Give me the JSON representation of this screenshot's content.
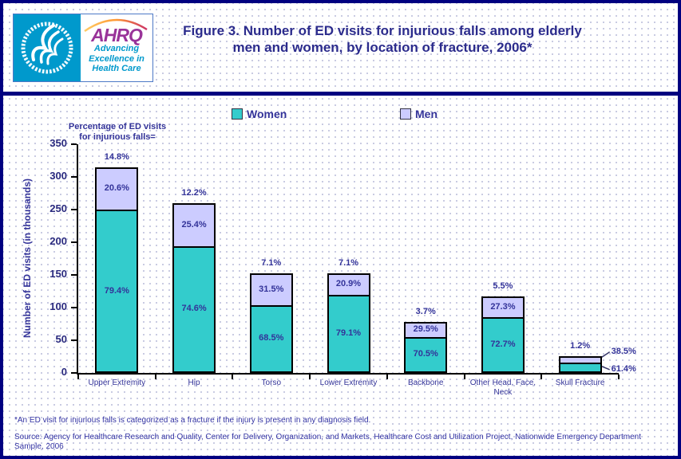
{
  "page": {
    "title_line1": "Figure 3. Number of ED visits for injurious falls among elderly",
    "title_line2": "men and women, by location of fracture, 2006*",
    "footnote": "*An ED visit for injurious falls is categorized as a fracture if the injury is present in any diagnosis field.",
    "source": "Source: Agency for Healthcare Research and Quality, Center for Delivery, Organization, and Markets, Healthcare Cost and Utilization Project, Nationwide Emergency Department Sample, 2006"
  },
  "logo": {
    "acronym": "AHRQ",
    "tagline": "Advancing Excellence in Health Care"
  },
  "annotation": {
    "line1": "Percentage of ED visits",
    "line2": "for injurious falls="
  },
  "colors": {
    "women": "#33CCCC",
    "men": "#CCCCFF",
    "frame_navy": "#000080",
    "title_navy": "#2B2B8C",
    "label_navy": "#333399",
    "axis_black": "#000000",
    "hhs_blue": "#0099CC",
    "ahrq_purple": "#993399",
    "dot": "#C9CBE2"
  },
  "chart_data": {
    "type": "bar",
    "stacked": true,
    "title": "Number of ED visits for injurious falls among elderly men and women, by location of fracture, 2006",
    "ylabel": "Number of ED visits (in thousands)",
    "unit": "thousands",
    "ylim": [
      0,
      350
    ],
    "ytick_step": 50,
    "grid": false,
    "legend_position": "top",
    "categories": [
      "Upper Extremity",
      "Hip",
      "Torso",
      "Lower Extremity",
      "Backbone",
      "Other Head, Face, Neck",
      "Skull Fracture"
    ],
    "series": [
      {
        "name": "Women",
        "color": "#33CCCC",
        "values": [
          250,
          194,
          104,
          120,
          55,
          85,
          16
        ],
        "pct_labels": [
          "79.4%",
          "74.6%",
          "68.5%",
          "79.1%",
          "70.5%",
          "72.7%",
          "61.4%"
        ]
      },
      {
        "name": "Men",
        "color": "#CCCCFF",
        "values": [
          65,
          66,
          48,
          32,
          23,
          32,
          10
        ],
        "pct_labels": [
          "20.6%",
          "25.4%",
          "31.5%",
          "20.9%",
          "29.5%",
          "27.3%",
          "38.5%"
        ]
      }
    ],
    "totals": [
      315,
      260,
      152,
      152,
      78,
      117,
      26
    ],
    "total_pct_labels": [
      "14.8%",
      "12.2%",
      "7.1%",
      "7.1%",
      "3.7%",
      "5.5%",
      "1.2%"
    ],
    "callout_index": 6
  }
}
